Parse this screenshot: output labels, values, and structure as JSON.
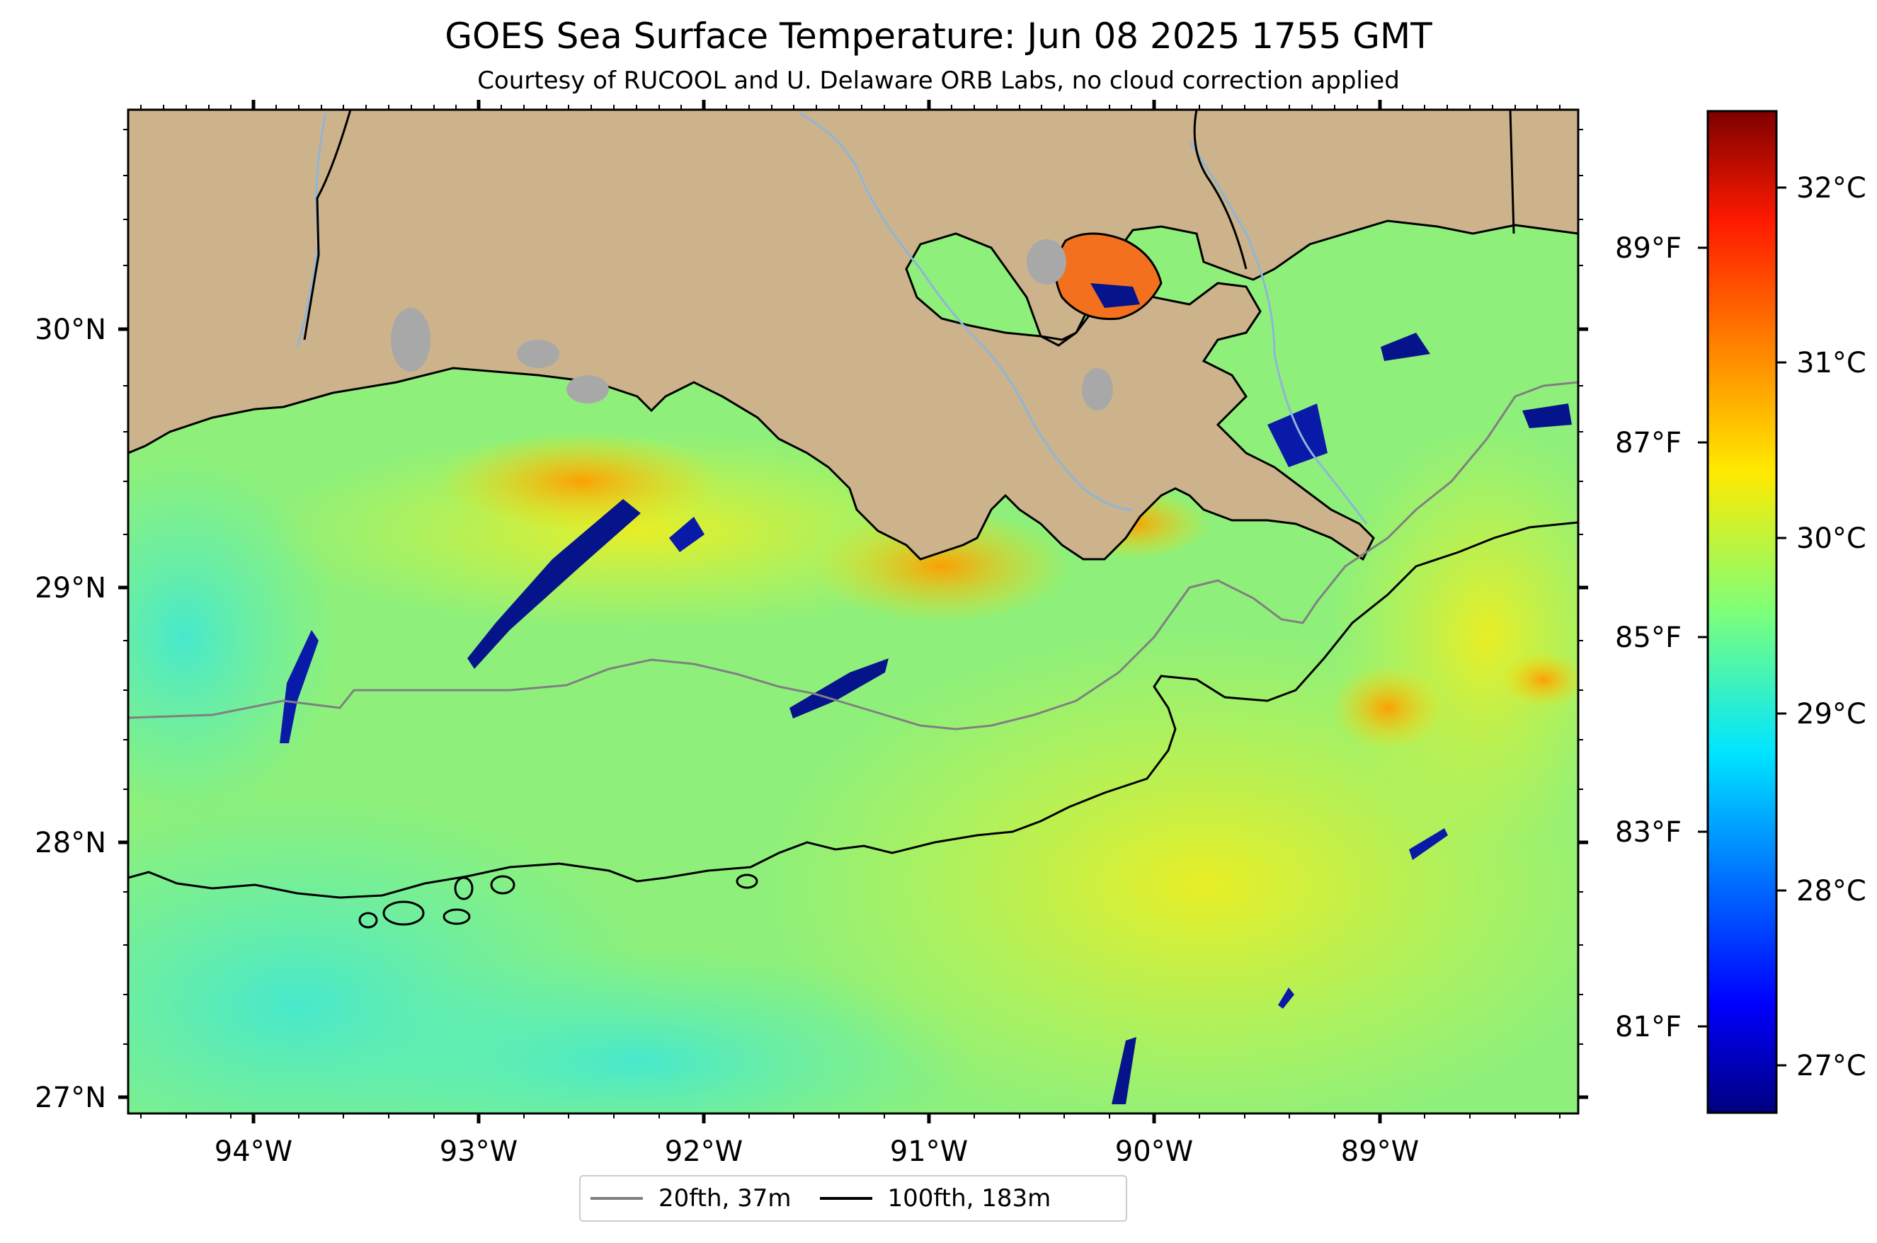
{
  "title": "GOES Sea Surface Temperature: Jun 08 2025 1755 GMT",
  "subtitle": "Courtesy of RUCOOL and U. Delaware ORB Labs, no cloud correction applied",
  "map": {
    "lon_ticks": [
      "94°W",
      "93°W",
      "92°W",
      "91°W",
      "90°W",
      "89°W"
    ],
    "lat_ticks": [
      "30°N",
      "29°N",
      "28°N",
      "27°N"
    ],
    "colors": {
      "land": "#cdb38b",
      "lake": "#a8a8a8",
      "river": "#8fb5d8",
      "coast": "#000000",
      "isobath_20": "#808080",
      "isobath_100": "#000000"
    }
  },
  "colorbar": {
    "celsius_labels": [
      "32°C",
      "31°C",
      "30°C",
      "29°C",
      "28°C",
      "27°C"
    ],
    "fahrenheit_labels": [
      "89°F",
      "87°F",
      "85°F",
      "83°F",
      "81°F"
    ],
    "colormap": "jet"
  },
  "legend": {
    "items": [
      {
        "label": "20fth, 37m",
        "color": "#808080"
      },
      {
        "label": "100fth, 183m",
        "color": "#000000"
      }
    ]
  }
}
